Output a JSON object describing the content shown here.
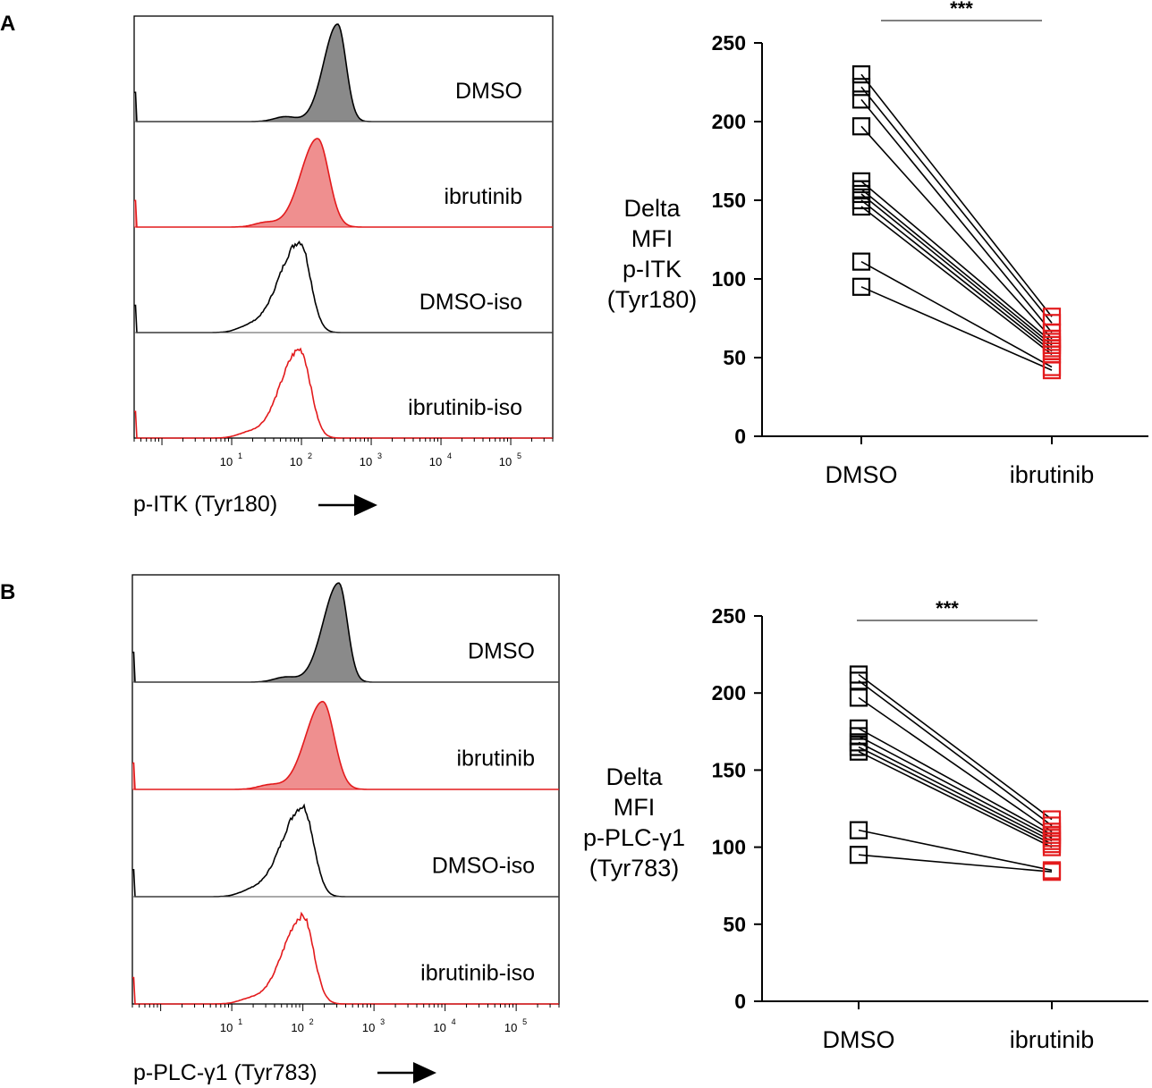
{
  "chart_data": [
    {
      "panel": "A",
      "type": "histogram",
      "title": "",
      "xlabel": "p-ITK (Tyr180)",
      "x_scale": "log",
      "xlim": [
        0.4,
        400000
      ],
      "x_ticks": [
        {
          "base": "10",
          "exp": "1",
          "value": 10
        },
        {
          "base": "10",
          "exp": "2",
          "value": 100
        },
        {
          "base": "10",
          "exp": "3",
          "value": 1000
        },
        {
          "base": "10",
          "exp": "4",
          "value": 10000
        },
        {
          "base": "10",
          "exp": "5",
          "value": 100000
        }
      ],
      "tracks": [
        {
          "name": "DMSO",
          "color": "#000000",
          "fill": "#8a8a8a",
          "filled": true,
          "peak_x": 330,
          "peak_height": 0.88,
          "width_lo": 0.2,
          "width_hi": 0.12
        },
        {
          "name": "ibrutinib",
          "color": "#e31a1c",
          "fill": "#ef8f8f",
          "filled": true,
          "peak_x": 170,
          "peak_height": 0.8,
          "width_lo": 0.24,
          "width_hi": 0.16
        },
        {
          "name": "DMSO-iso",
          "color": "#000000",
          "fill": "none",
          "filled": false,
          "peak_x": 95,
          "peak_height": 0.82,
          "width_lo": 0.3,
          "width_hi": 0.15
        },
        {
          "name": "ibrutinib-iso",
          "color": "#e31a1c",
          "fill": "none",
          "filled": false,
          "peak_x": 95,
          "peak_height": 0.8,
          "width_lo": 0.28,
          "width_hi": 0.15
        }
      ]
    },
    {
      "panel": "A",
      "type": "scatter",
      "subtype": "paired before-after",
      "title": "",
      "ylabel_lines": [
        "Delta",
        "MFI",
        "p-ITK",
        "(Tyr180)"
      ],
      "categories": [
        "DMSO",
        "ibrutinib"
      ],
      "ylim": [
        0,
        250
      ],
      "y_ticks": [
        0,
        50,
        100,
        150,
        200,
        250
      ],
      "significance": "***",
      "series_colors": [
        "#000000",
        "#e31a1c"
      ],
      "pairs": [
        [
          230,
          76
        ],
        [
          222,
          72
        ],
        [
          214,
          66
        ],
        [
          197,
          62
        ],
        [
          162,
          60
        ],
        [
          157,
          58
        ],
        [
          154,
          56
        ],
        [
          150,
          54
        ],
        [
          146,
          52
        ],
        [
          111,
          44
        ],
        [
          95,
          42
        ]
      ]
    },
    {
      "panel": "B",
      "type": "histogram",
      "title": "",
      "xlabel": "p-PLC-γ1 (Tyr783)",
      "x_scale": "log",
      "xlim": [
        0.4,
        400000
      ],
      "x_ticks": [
        {
          "base": "10",
          "exp": "1",
          "value": 10
        },
        {
          "base": "10",
          "exp": "2",
          "value": 100
        },
        {
          "base": "10",
          "exp": "3",
          "value": 1000
        },
        {
          "base": "10",
          "exp": "4",
          "value": 10000
        },
        {
          "base": "10",
          "exp": "5",
          "value": 100000
        }
      ],
      "tracks": [
        {
          "name": "DMSO",
          "color": "#000000",
          "fill": "#8a8a8a",
          "filled": true,
          "peak_x": 320,
          "peak_height": 0.88,
          "width_lo": 0.22,
          "width_hi": 0.12
        },
        {
          "name": "ibrutinib",
          "color": "#e31a1c",
          "fill": "#ef8f8f",
          "filled": true,
          "peak_x": 190,
          "peak_height": 0.78,
          "width_lo": 0.24,
          "width_hi": 0.16
        },
        {
          "name": "DMSO-iso",
          "color": "#000000",
          "fill": "none",
          "filled": false,
          "peak_x": 100,
          "peak_height": 0.8,
          "width_lo": 0.3,
          "width_hi": 0.15
        },
        {
          "name": "ibrutinib-iso",
          "color": "#e31a1c",
          "fill": "none",
          "filled": false,
          "peak_x": 100,
          "peak_height": 0.78,
          "width_lo": 0.28,
          "width_hi": 0.15
        }
      ]
    },
    {
      "panel": "B",
      "type": "scatter",
      "subtype": "paired before-after",
      "title": "",
      "ylabel_lines": [
        "Delta",
        "MFI",
        "p-PLC-γ1",
        "(Tyr783)"
      ],
      "categories": [
        "DMSO",
        "ibrutinib"
      ],
      "ylim": [
        0,
        250
      ],
      "y_ticks": [
        0,
        50,
        100,
        150,
        200,
        250
      ],
      "significance": "***",
      "series_colors": [
        "#000000",
        "#e31a1c"
      ],
      "pairs": [
        [
          212,
          118
        ],
        [
          208,
          114
        ],
        [
          197,
          110
        ],
        [
          177,
          108
        ],
        [
          172,
          106
        ],
        [
          168,
          104
        ],
        [
          165,
          102
        ],
        [
          162,
          100
        ],
        [
          111,
          85
        ],
        [
          95,
          84
        ]
      ]
    }
  ]
}
